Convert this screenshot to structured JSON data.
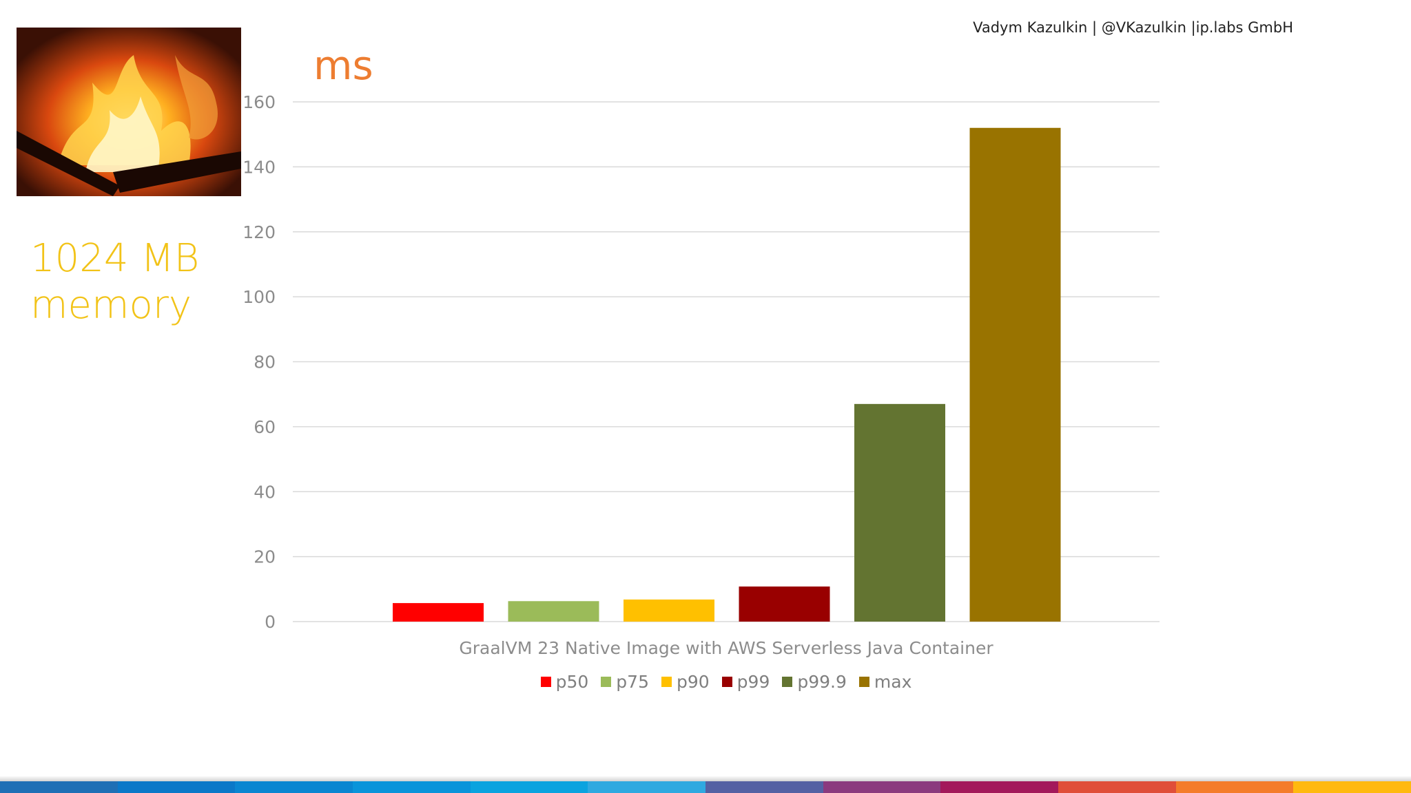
{
  "header": {
    "author": "Vadym Kazulkin | @VKazulkin |ip.labs GmbH"
  },
  "sidebar": {
    "image_alt": "fire",
    "memory_line1": "1024 MB",
    "memory_line2": "memory"
  },
  "chart_data": {
    "type": "bar",
    "title": "",
    "ylabel": "ms",
    "xlabel": "GraalVM 23 Native Image with AWS Serverless Java Container",
    "ylim": [
      0,
      160
    ],
    "yticks": [
      0,
      20,
      40,
      60,
      80,
      100,
      120,
      140,
      160
    ],
    "grid": true,
    "legend": "bottom",
    "categories": [
      "GraalVM 23 Native Image with AWS Serverless Java Container"
    ],
    "series": [
      {
        "name": "p50",
        "values": [
          5.7
        ],
        "color": "#FF0000"
      },
      {
        "name": "p75",
        "values": [
          6.3
        ],
        "color": "#9BBB59"
      },
      {
        "name": "p90",
        "values": [
          6.8
        ],
        "color": "#FFC000"
      },
      {
        "name": "p99",
        "values": [
          10.8
        ],
        "color": "#990000"
      },
      {
        "name": "p99.9",
        "values": [
          67.0
        ],
        "color": "#637431"
      },
      {
        "name": "max",
        "values": [
          152.0
        ],
        "color": "#997300"
      }
    ]
  },
  "colors": {
    "memory_label": "#F2C318",
    "unit_label": "#ED7D31",
    "stripe": [
      "#1F6FB5",
      "#0B78C8",
      "#0A86D1",
      "#0A94DA",
      "#0BA3DF",
      "#2FA9E0",
      "#5461A3",
      "#8B3A7E",
      "#A3195B",
      "#E04E39",
      "#F47C2A",
      "#FFB90F"
    ]
  }
}
